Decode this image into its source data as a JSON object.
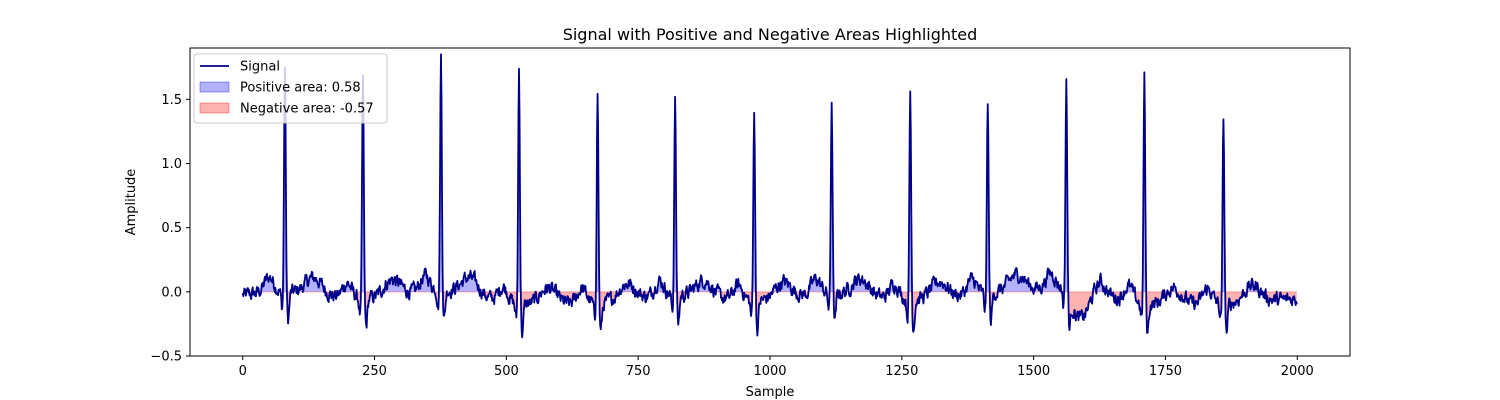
{
  "chart_data": {
    "type": "area",
    "title": "Signal with Positive and Negative Areas Highlighted",
    "xlabel": "Sample",
    "ylabel": "Amplitude",
    "xlim": [
      -100,
      2100
    ],
    "ylim": [
      -0.5,
      1.9
    ],
    "xticks": [
      0,
      250,
      500,
      750,
      1000,
      1250,
      1500,
      1750,
      2000
    ],
    "yticks": [
      -0.5,
      0.0,
      0.5,
      1.0,
      1.5
    ],
    "xtick_labels": [
      "0",
      "250",
      "500",
      "750",
      "1000",
      "1250",
      "1500",
      "1750",
      "2000"
    ],
    "ytick_labels": [
      "−0.5",
      "0.0",
      "0.5",
      "1.0",
      "1.5"
    ],
    "grid": false,
    "legend_position": "top-left",
    "series": [
      {
        "name": "Signal",
        "kind": "line",
        "color": "#00008b"
      },
      {
        "name": "Positive area: 0.58",
        "kind": "fill",
        "color": "#0000ff",
        "alpha": 0.3
      },
      {
        "name": "Negative area: -0.57",
        "kind": "fill",
        "color": "#ff0000",
        "alpha": 0.3
      }
    ],
    "n_samples": 2000,
    "beats": [
      {
        "x": 80,
        "peak": 1.77,
        "base": 0.05
      },
      {
        "x": 228,
        "peak": 1.72,
        "base": -0.02
      },
      {
        "x": 376,
        "peak": 1.83,
        "base": 0.07
      },
      {
        "x": 524,
        "peak": 1.84,
        "base": -0.05
      },
      {
        "x": 673,
        "peak": 1.67,
        "base": -0.04
      },
      {
        "x": 820,
        "peak": 1.57,
        "base": 0.03
      },
      {
        "x": 970,
        "peak": 1.52,
        "base": -0.03
      },
      {
        "x": 1117,
        "peak": 1.52,
        "base": 0.04
      },
      {
        "x": 1266,
        "peak": 1.63,
        "base": -0.02
      },
      {
        "x": 1413,
        "peak": 1.51,
        "base": 0.03
      },
      {
        "x": 1562,
        "peak": 1.65,
        "base": 0.08
      },
      {
        "x": 1710,
        "peak": 1.78,
        "base": -0.05
      },
      {
        "x": 1860,
        "peak": 1.46,
        "base": -0.04
      }
    ]
  }
}
